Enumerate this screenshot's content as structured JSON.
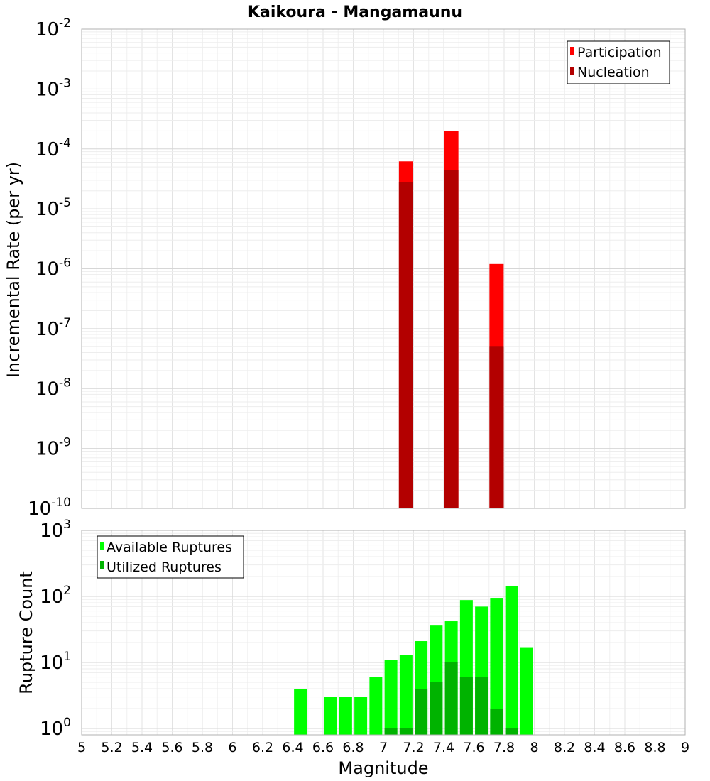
{
  "chart_data": {
    "title": "Kaikoura - Mangamaunu",
    "xlabel": "Magnitude",
    "xlim": [
      5,
      9
    ],
    "x_ticks": [
      "5",
      "5.2",
      "5.4",
      "5.6",
      "5.8",
      "6",
      "6.2",
      "6.4",
      "6.6",
      "6.8",
      "7",
      "7.2",
      "7.4",
      "7.6",
      "7.8",
      "8",
      "8.2",
      "8.4",
      "8.6",
      "8.8",
      "9"
    ],
    "panels": [
      {
        "type": "bar",
        "ylabel": "Incremental Rate (per yr)",
        "yscale": "log",
        "ylim": [
          1e-10,
          0.01
        ],
        "grid": true,
        "legend_position": "top-right",
        "y_ticks": [
          {
            "base": "10",
            "exp": "-10"
          },
          {
            "base": "10",
            "exp": "-9"
          },
          {
            "base": "10",
            "exp": "-8"
          },
          {
            "base": "10",
            "exp": "-7"
          },
          {
            "base": "10",
            "exp": "-6"
          },
          {
            "base": "10",
            "exp": "-5"
          },
          {
            "base": "10",
            "exp": "-4"
          },
          {
            "base": "10",
            "exp": "-3"
          },
          {
            "base": "10",
            "exp": "-2"
          }
        ],
        "series": [
          {
            "name": "Participation",
            "color": "#ff0000",
            "points": [
              {
                "x": 7.15,
                "y": 6.2e-05
              },
              {
                "x": 7.45,
                "y": 0.0002
              },
              {
                "x": 7.75,
                "y": 1.2e-06
              }
            ]
          },
          {
            "name": "Nucleation",
            "color": "#b30000",
            "points": [
              {
                "x": 7.15,
                "y": 2.8e-05
              },
              {
                "x": 7.45,
                "y": 4.5e-05
              },
              {
                "x": 7.75,
                "y": 5e-08
              }
            ]
          }
        ]
      },
      {
        "type": "bar",
        "ylabel": "Rupture Count",
        "yscale": "log",
        "ylim": [
          0.8,
          1000
        ],
        "grid": true,
        "legend_position": "top-left",
        "y_ticks": [
          {
            "base": "10",
            "exp": "0"
          },
          {
            "base": "10",
            "exp": "1"
          },
          {
            "base": "10",
            "exp": "2"
          },
          {
            "base": "10",
            "exp": "3"
          }
        ],
        "series": [
          {
            "name": "Available Ruptures",
            "color": "#00ff00",
            "points": [
              {
                "x": 6.45,
                "y": 4
              },
              {
                "x": 6.65,
                "y": 3
              },
              {
                "x": 6.75,
                "y": 3
              },
              {
                "x": 6.85,
                "y": 3
              },
              {
                "x": 6.95,
                "y": 6
              },
              {
                "x": 7.05,
                "y": 11
              },
              {
                "x": 7.15,
                "y": 13
              },
              {
                "x": 7.25,
                "y": 21
              },
              {
                "x": 7.35,
                "y": 37
              },
              {
                "x": 7.45,
                "y": 42
              },
              {
                "x": 7.55,
                "y": 88
              },
              {
                "x": 7.65,
                "y": 70
              },
              {
                "x": 7.75,
                "y": 95
              },
              {
                "x": 7.85,
                "y": 145
              },
              {
                "x": 7.95,
                "y": 17
              }
            ]
          },
          {
            "name": "Utilized Ruptures",
            "color": "#00b300",
            "points": [
              {
                "x": 7.05,
                "y": 1
              },
              {
                "x": 7.15,
                "y": 1
              },
              {
                "x": 7.25,
                "y": 4
              },
              {
                "x": 7.35,
                "y": 5
              },
              {
                "x": 7.45,
                "y": 10
              },
              {
                "x": 7.55,
                "y": 6
              },
              {
                "x": 7.65,
                "y": 6
              },
              {
                "x": 7.75,
                "y": 2
              },
              {
                "x": 7.85,
                "y": 1
              }
            ]
          }
        ]
      }
    ]
  }
}
